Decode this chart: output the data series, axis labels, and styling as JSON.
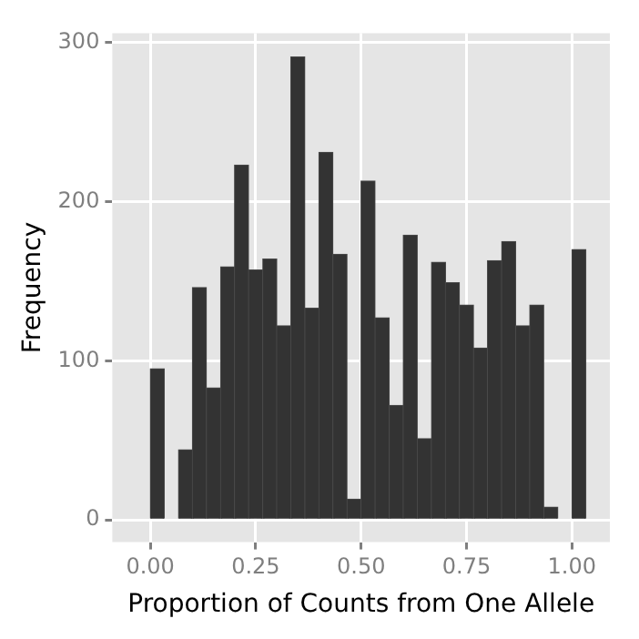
{
  "chart_data": {
    "type": "histogram",
    "xlabel": "Proportion of Counts from One Allele",
    "ylabel": "Frequency",
    "bins": [
      0,
      0.033,
      0.067,
      0.1,
      0.133,
      0.167,
      0.2,
      0.233,
      0.267,
      0.3,
      0.333,
      0.367,
      0.4,
      0.433,
      0.467,
      0.5,
      0.533,
      0.567,
      0.6,
      0.633,
      0.667,
      0.7,
      0.733,
      0.767,
      0.8,
      0.833,
      0.867,
      0.9,
      0.933,
      0.967,
      1,
      1.033
    ],
    "values": [
      95,
      0,
      44,
      146,
      83,
      159,
      223,
      157,
      164,
      122,
      291,
      133,
      231,
      167,
      13,
      213,
      127,
      72,
      179,
      51,
      162,
      149,
      135,
      108,
      163,
      175,
      122,
      135,
      8,
      0,
      170
    ],
    "color": "#333333",
    "xlim": [
      -0.09,
      1.09
    ],
    "ylim": [
      -14,
      306
    ],
    "xticks": [
      {
        "value": 0,
        "label": "0.00"
      },
      {
        "value": 0.25,
        "label": "0.25"
      },
      {
        "value": 0.5,
        "label": "0.50"
      },
      {
        "value": 0.75,
        "label": "0.75"
      },
      {
        "value": 1,
        "label": "1.00"
      }
    ],
    "yticks": [
      0,
      100,
      200,
      300
    ],
    "grid": true
  }
}
